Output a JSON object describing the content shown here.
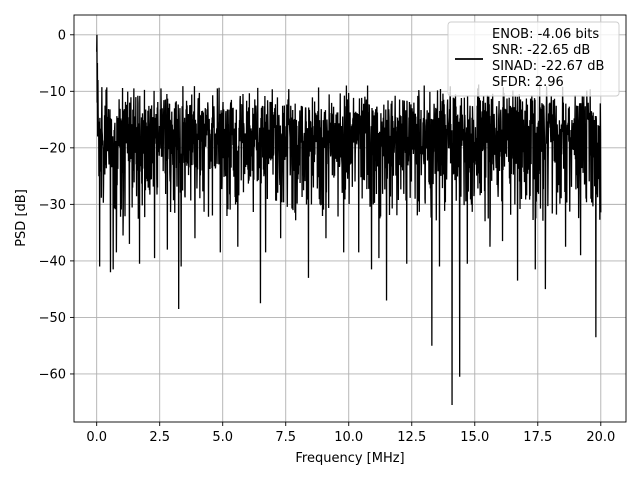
{
  "chart_data": {
    "type": "line",
    "title": "",
    "xlabel": "Frequency [MHz]",
    "ylabel": "PSD [dB]",
    "xlim": [
      -0.9,
      21.0
    ],
    "ylim": [
      -68.5,
      3.5
    ],
    "xticks": [
      0.0,
      2.5,
      5.0,
      7.5,
      10.0,
      12.5,
      15.0,
      17.5,
      20.0
    ],
    "xtick_labels": [
      "0.0",
      "2.5",
      "5.0",
      "7.5",
      "10.0",
      "12.5",
      "15.0",
      "17.5",
      "20.0"
    ],
    "yticks": [
      0,
      -10,
      -20,
      -30,
      -40,
      -50,
      -60
    ],
    "ytick_labels": [
      "0",
      "−10",
      "−20",
      "−30",
      "−40",
      "−50",
      "−60"
    ],
    "grid": true,
    "legend_position": "top-right",
    "colors": {
      "line": "#000000",
      "grid": "#b0b0b0"
    },
    "series": [
      {
        "name": "ENOB: -4.06 bits\nSNR: -22.65 dB\nSINAD: -22.67 dB\nSFDR: 2.96",
        "color": "#000000",
        "f_min": 0.0,
        "f_max": 20.0,
        "num_points": 2048,
        "peak": {
          "x": 0.0,
          "y": 0.0
        },
        "envelope_top": -9.5,
        "envelope_bottom_typical": -29,
        "median_level": -18,
        "dips": [
          {
            "x": 0.12,
            "y": -41.0
          },
          {
            "x": 0.55,
            "y": -42.0
          },
          {
            "x": 0.65,
            "y": -41.5
          },
          {
            "x": 0.78,
            "y": -38.5
          },
          {
            "x": 1.05,
            "y": -35.5
          },
          {
            "x": 1.3,
            "y": -37.0
          },
          {
            "x": 1.7,
            "y": -40.5
          },
          {
            "x": 2.3,
            "y": -39.5
          },
          {
            "x": 2.8,
            "y": -38.0
          },
          {
            "x": 3.25,
            "y": -48.5
          },
          {
            "x": 3.35,
            "y": -41.0
          },
          {
            "x": 3.9,
            "y": -36.0
          },
          {
            "x": 4.9,
            "y": -38.5
          },
          {
            "x": 5.6,
            "y": -37.5
          },
          {
            "x": 6.5,
            "y": -47.5
          },
          {
            "x": 6.7,
            "y": -38.5
          },
          {
            "x": 7.3,
            "y": -36.0
          },
          {
            "x": 8.4,
            "y": -43.0
          },
          {
            "x": 9.1,
            "y": -36.0
          },
          {
            "x": 9.8,
            "y": -38.5
          },
          {
            "x": 10.4,
            "y": -38.5
          },
          {
            "x": 10.9,
            "y": -41.5
          },
          {
            "x": 11.2,
            "y": -39.5
          },
          {
            "x": 11.5,
            "y": -47.0
          },
          {
            "x": 12.3,
            "y": -40.5
          },
          {
            "x": 13.3,
            "y": -55.0
          },
          {
            "x": 13.6,
            "y": -41.0
          },
          {
            "x": 14.1,
            "y": -65.5
          },
          {
            "x": 14.4,
            "y": -60.5
          },
          {
            "x": 14.7,
            "y": -40.5
          },
          {
            "x": 15.6,
            "y": -37.5
          },
          {
            "x": 16.1,
            "y": -36.5
          },
          {
            "x": 16.7,
            "y": -43.5
          },
          {
            "x": 17.4,
            "y": -41.5
          },
          {
            "x": 17.8,
            "y": -45.0
          },
          {
            "x": 18.6,
            "y": -37.5
          },
          {
            "x": 19.2,
            "y": -39.0
          },
          {
            "x": 19.8,
            "y": -53.5
          }
        ]
      }
    ]
  }
}
